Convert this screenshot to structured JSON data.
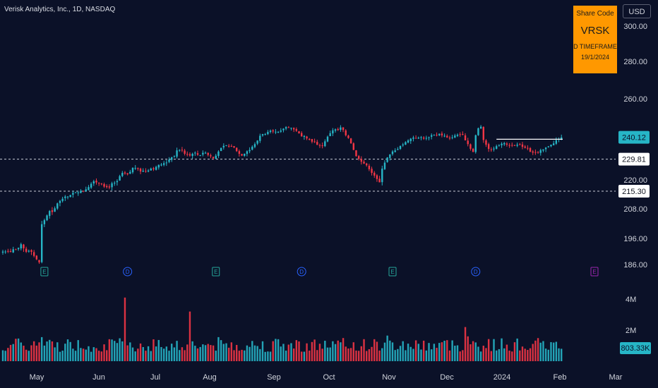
{
  "header": {
    "title": "Verisk Analytics, Inc., 1D, NASDAQ",
    "currency_button": "USD"
  },
  "infobox": {
    "line1": "Share Code",
    "line2": "VRSK",
    "line3": "D TIMEFRAME",
    "line4": "19/1/2024"
  },
  "colors": {
    "background": "#0b1128",
    "up": "#26b5c6",
    "down": "#f23645",
    "infobox": "#ff9800",
    "earnings_marker": "#26a69a",
    "dividend_marker": "#2962ff",
    "upcoming_earnings_marker": "#9c27b0"
  },
  "chart_data": {
    "type": "candlestick",
    "symbol": "VRSK",
    "timeframe": "1D",
    "y_ticks": [
      "300.00",
      "280.00",
      "260.00",
      "220.00",
      "208.00",
      "196.00",
      "186.00"
    ],
    "x_ticks": [
      "May",
      "Jun",
      "Jul",
      "Aug",
      "Sep",
      "Oct",
      "Nov",
      "Dec",
      "2024",
      "Feb",
      "Mar"
    ],
    "volume_ticks": [
      "4M",
      "2M"
    ],
    "price_labels": [
      {
        "text": "240.12",
        "value": 240.12,
        "style": "current"
      },
      {
        "text": "229.81",
        "value": 229.81,
        "style": "line"
      },
      {
        "text": "215.30",
        "value": 215.3,
        "style": "line"
      }
    ],
    "last_volume_label": "803.33K",
    "horizontal_lines": [
      215.3,
      229.81
    ],
    "resistance_line": {
      "value": 239.2,
      "from_index": 190
    },
    "event_markers": [
      {
        "type": "E",
        "index": 16
      },
      {
        "type": "D",
        "index": 48
      },
      {
        "type": "E",
        "index": 82
      },
      {
        "type": "D",
        "index": 115
      },
      {
        "type": "E",
        "index": 150
      },
      {
        "type": "D",
        "index": 182
      },
      {
        "type": "E",
        "index": 230
      }
    ],
    "candles_note": "open/high/low/close per trading day plus volume in millions",
    "closes": [
      190.97,
      190.97,
      190.99,
      190.8,
      191.86,
      191.61,
      192.37,
      193.79,
      192.23,
      190.89,
      191.24,
      190.9,
      189.31,
      187.99,
      186.85,
      201.77,
      203.41,
      205.32,
      207.11,
      206.72,
      208.2,
      210.26,
      211.32,
      212.17,
      213.09,
      213.08,
      213.74,
      214.61,
      214.82,
      214.77,
      215.47,
      215.41,
      216.07,
      217.02,
      218.38,
      219.42,
      218.93,
      218.72,
      218.19,
      217.21,
      217.02,
      216.86,
      218.58,
      218.8,
      219.54,
      221.79,
      223.31,
      223.03,
      222.64,
      223.8,
      225.68,
      225.67,
      225.19,
      223.97,
      224.32,
      224.14,
      224.44,
      225.35,
      224.99,
      226.15,
      227.1,
      227.25,
      227.88,
      228.21,
      229.62,
      230.71,
      231.2,
      233.95,
      234.11,
      233.97,
      232.34,
      232.13,
      231.52,
      232.32,
      232.85,
      231.84,
      231.69,
      232.8,
      232.83,
      231.79,
      231.16,
      230.27,
      231.45,
      233.41,
      235.06,
      236.09,
      236.38,
      235.71,
      235.83,
      235.31,
      233.58,
      232.32,
      231.47,
      232.32,
      233.53,
      234.14,
      235.69,
      236.9,
      238.58,
      240.92,
      241.76,
      241.79,
      242.9,
      243.56,
      243.15,
      243.01,
      242.92,
      243.61,
      244.57,
      245.37,
      245.2,
      245.08,
      244.21,
      243.46,
      242.12,
      240.56,
      240.82,
      239.59,
      239.32,
      238.05,
      237.87,
      236.53,
      236.15,
      236.15,
      238.22,
      240.46,
      242.25,
      243.73,
      244.2,
      243.86,
      245.21,
      243.91,
      241.18,
      239.79,
      237.29,
      234.17,
      231.22,
      229.91,
      228.59,
      227.71,
      226.92,
      225.06,
      223.29,
      222.03,
      220.42,
      218.99,
      225.33,
      228.16,
      230.6,
      232.01,
      233.42,
      233.92,
      234.56,
      236.06,
      236.72,
      237.85,
      238.65,
      239.48,
      240.01,
      239.78,
      239.92,
      240.2,
      239.52,
      239.83,
      240.14,
      241.22,
      241.51,
      241.39,
      241.93,
      241.13,
      240.92,
      240.07,
      239.58,
      240.1,
      241.05,
      241.44,
      241.63,
      241.42,
      238.67,
      236.9,
      234.7,
      233.19,
      241.19,
      244.81,
      245.6,
      238.85,
      236.62,
      234.63,
      234.2,
      234.79,
      235.95,
      236.47,
      237.1,
      237.37,
      236.64,
      236.42,
      236.36,
      236.36,
      236.61,
      236.48,
      235.61,
      235.17,
      234.87,
      233.23,
      232.9,
      233.05,
      233.06,
      234.1,
      234.44,
      235.25,
      235.88,
      236.65,
      237.25,
      238.73,
      239.3,
      240.12
    ]
  }
}
